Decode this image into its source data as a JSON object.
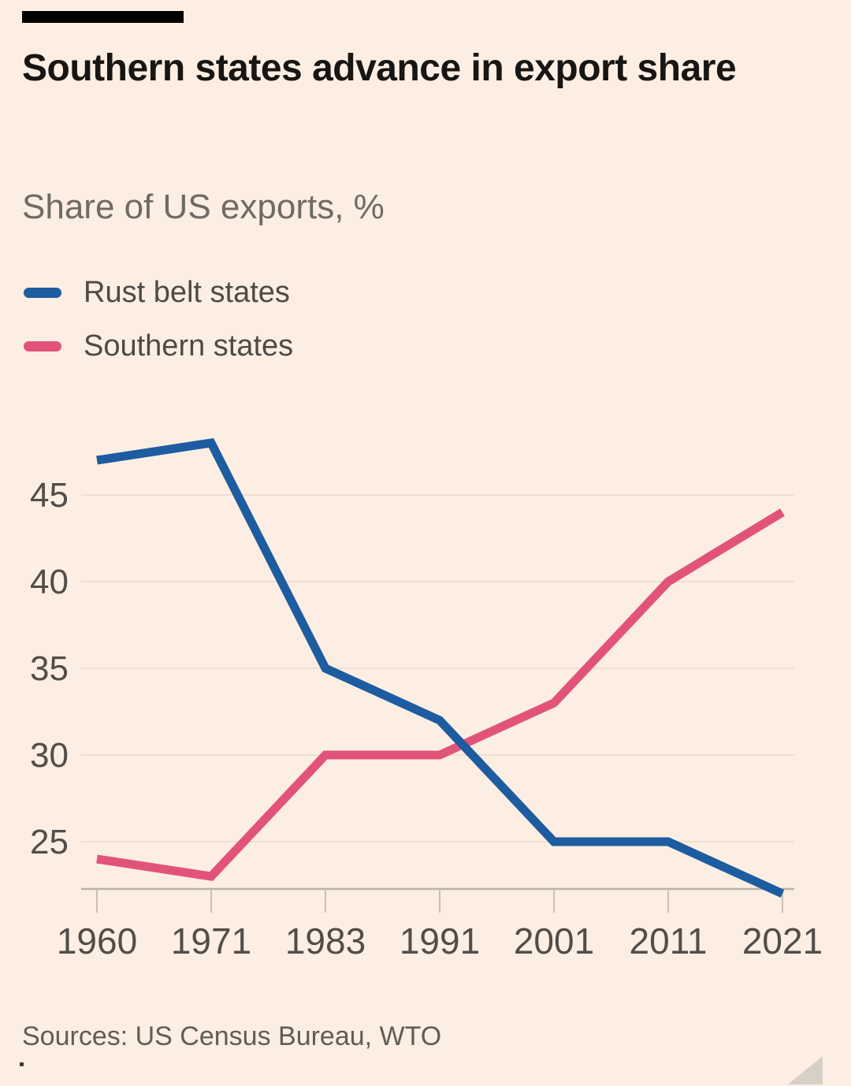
{
  "colors": {
    "background": "#fceee3",
    "brand_bar": "#000000",
    "title_text": "#181512",
    "subtitle_text": "#6f6a64",
    "legend_text": "#4f4a45",
    "axis_text": "#524d48",
    "gridline": "#eedfd2",
    "axis_line": "#bab2a8",
    "tick": "#c8bfb5",
    "source_text": "#615c56",
    "corner_triangle": "#d8d0c6"
  },
  "chart_data": {
    "type": "line",
    "title": "Southern states advance in export share",
    "subtitle": "Share of US exports, %",
    "categories": [
      "1960",
      "1971",
      "1983",
      "1991",
      "2001",
      "2011",
      "2021"
    ],
    "series": [
      {
        "name": "Rust belt states",
        "color": "#1d5ca0",
        "values": [
          47,
          48,
          35,
          32,
          25,
          25,
          22
        ]
      },
      {
        "name": "Southern states",
        "color": "#e2537a",
        "values": [
          24,
          23,
          30,
          30,
          33,
          40,
          44
        ]
      }
    ],
    "yticks": [
      25,
      30,
      35,
      40,
      45
    ],
    "ylim": [
      22,
      49
    ],
    "xlabel": "",
    "ylabel": "Share of US exports, %",
    "grid": true,
    "legend_position": "top-left"
  },
  "footer": {
    "source": "Sources: US Census Bureau, WTO"
  }
}
